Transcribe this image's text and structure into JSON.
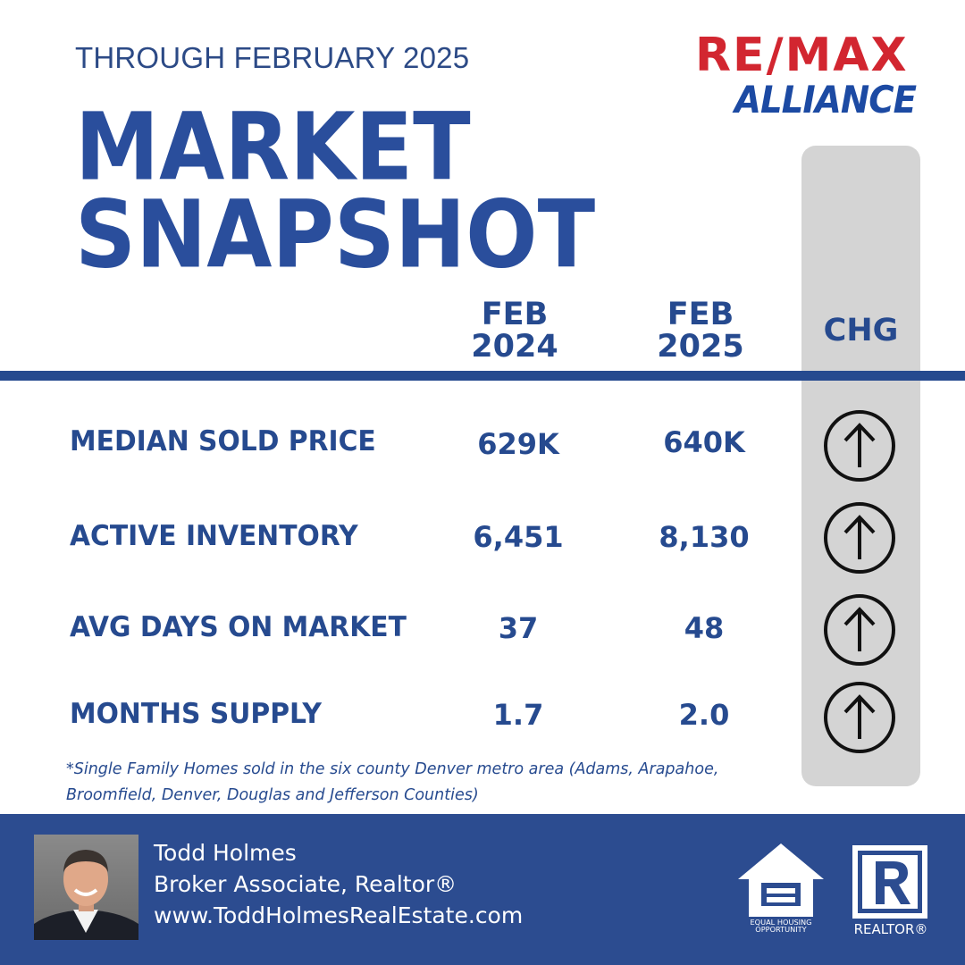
{
  "header": {
    "through": "THROUGH FEBRUARY 2025",
    "title_line1": "MARKET",
    "title_line2": "SNAPSHOT"
  },
  "brand": {
    "re": "RE",
    "slash": "/",
    "max": "MAX",
    "alliance": "ALLIANCE",
    "red": "#d22630",
    "blue": "#1c4aa3"
  },
  "columns": {
    "feb2024": [
      "FEB",
      "2024"
    ],
    "feb2025": [
      "FEB",
      "2025"
    ],
    "chg": "CHG"
  },
  "rows": [
    {
      "label": "MEDIAN SOLD PRICE",
      "feb2024": "629K",
      "feb2025": "640K",
      "change": "up",
      "icon": "arrow-up-circle-icon"
    },
    {
      "label": "ACTIVE INVENTORY",
      "feb2024": "6,451",
      "feb2025": "8,130",
      "change": "up",
      "icon": "arrow-up-circle-icon"
    },
    {
      "label": "AVG DAYS ON MARKET",
      "feb2024": "37",
      "feb2025": "48",
      "change": "up",
      "icon": "arrow-up-circle-icon"
    },
    {
      "label": "MONTHS SUPPLY",
      "feb2024": "1.7",
      "feb2025": "2.0",
      "change": "up",
      "icon": "arrow-up-circle-icon"
    }
  ],
  "footnote": "*Single Family Homes sold in the six county Denver metro area (Adams, Arapahoe, Broomfield, Denver, Douglas and Jefferson Counties)",
  "agent": {
    "name": "Todd Holmes",
    "title": "Broker Associate, Realtor®",
    "website": "www.ToddHolmesRealEstate.com"
  },
  "badges": {
    "eho_line1": "EQUAL HOUSING",
    "eho_line2": "OPPORTUNITY",
    "realtor": "REALTOR®"
  },
  "colors": {
    "primary_blue": "#264a8f",
    "footer_blue": "#2c4c90",
    "chg_column_gray": "#d4d4d4"
  }
}
